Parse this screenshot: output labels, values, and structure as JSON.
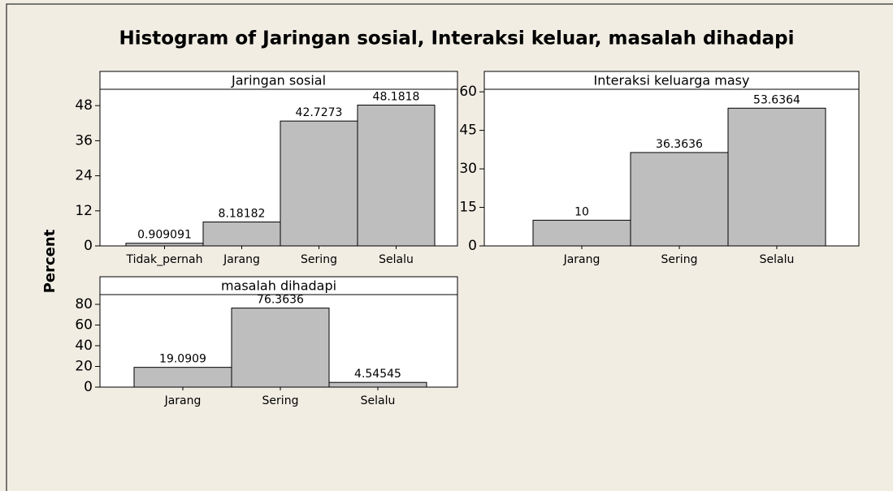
{
  "title": "Histogram of Jaringan sosial, Interaksi keluar, masalah dihadapi",
  "y_axis_label": "Percent",
  "chart_data": [
    {
      "type": "bar",
      "title": "Jaringan sosial",
      "categories": [
        "Tidak_pernah",
        "Jarang",
        "Sering",
        "Selalu"
      ],
      "values": [
        0.909091,
        8.18182,
        42.7273,
        48.1818
      ],
      "color": "#bebebe",
      "ylim": [
        0,
        53.6
      ],
      "yticks": [
        0,
        12,
        24,
        36,
        48
      ]
    },
    {
      "type": "bar",
      "title": "Interaksi keluarga masy",
      "categories": [
        "Jarang",
        "Sering",
        "Selalu"
      ],
      "values": [
        10,
        36.3636,
        53.6364
      ],
      "color": "#bebebe",
      "ylim": [
        0,
        61
      ],
      "yticks": [
        0,
        15,
        30,
        45,
        60
      ]
    },
    {
      "type": "bar",
      "title": "masalah dihadapi",
      "categories": [
        "Jarang",
        "Sering",
        "Selalu"
      ],
      "values": [
        19.0909,
        76.3636,
        4.54545
      ],
      "color": "#bebebe",
      "ylim": [
        0,
        89.4
      ],
      "yticks": [
        0,
        20,
        40,
        60,
        80
      ]
    }
  ]
}
